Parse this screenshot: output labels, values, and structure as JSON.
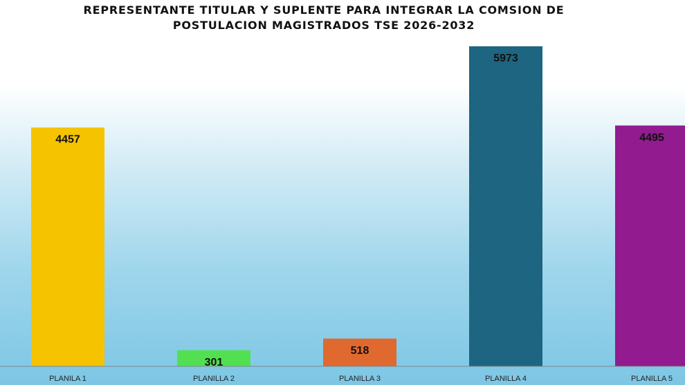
{
  "chart_data": {
    "type": "bar",
    "title": "REPRESENTANTE TITULAR Y SUPLENTE PARA INTEGRAR LA COMSION DE POSTULACION MAGISTRADOS TSE 2026-2032",
    "categories": [
      "PLANILA 1",
      "PLANILLA 2",
      "PLANILLA 3",
      "PLANILLA 4",
      "PLANILLA 5"
    ],
    "values": [
      4457,
      301,
      518,
      5973,
      4495
    ],
    "colors": [
      "#f5c300",
      "#52e052",
      "#e0692f",
      "#1d6580",
      "#911b8f"
    ]
  }
}
